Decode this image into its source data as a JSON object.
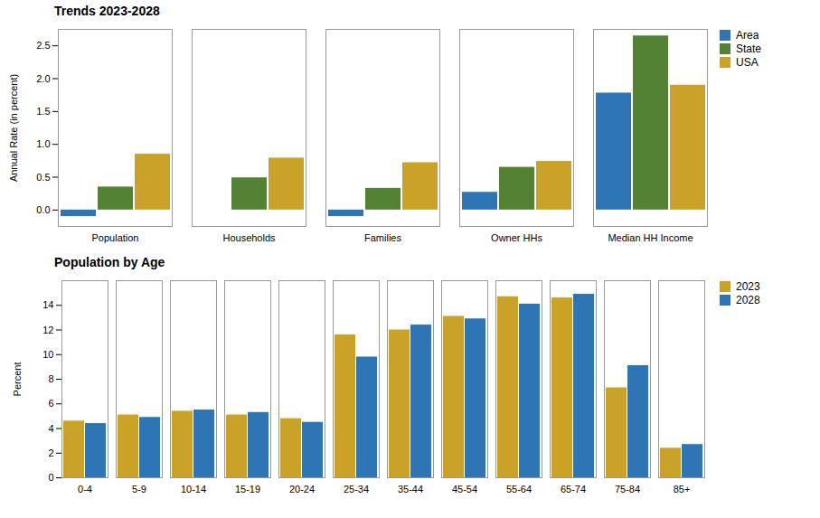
{
  "chart_data": [
    {
      "type": "bar",
      "title": "Trends 2023-2028",
      "categories": [
        "Population",
        "Households",
        "Families",
        "Owner HHs",
        "Median HH Income"
      ],
      "series": [
        {
          "name": "Area",
          "color": "#2E75B6",
          "values": [
            -0.1,
            0.0,
            -0.1,
            0.27,
            1.78
          ]
        },
        {
          "name": "State",
          "color": "#548235",
          "values": [
            0.35,
            0.49,
            0.33,
            0.65,
            2.65
          ]
        },
        {
          "name": "USA",
          "color": "#C9A227",
          "values": [
            0.85,
            0.79,
            0.72,
            0.74,
            1.9
          ]
        }
      ],
      "ylabel": "Annual Rate (in percent)",
      "ylim": [
        -0.25,
        2.75
      ],
      "yticks": [
        {
          "value": 0,
          "label": "0.0"
        },
        0.5,
        {
          "value": 1,
          "label": "1.0"
        },
        1.5,
        {
          "value": 2,
          "label": "2.0"
        },
        2.5
      ],
      "grid": false,
      "legend": "right"
    },
    {
      "type": "bar",
      "title": "Population by Age",
      "categories": [
        "0-4",
        "5-9",
        "10-14",
        "15-19",
        "20-24",
        "25-34",
        "35-44",
        "45-54",
        "55-64",
        "65-74",
        "75-84",
        "85+"
      ],
      "series": [
        {
          "name": "2023",
          "color": "#C9A227",
          "values": [
            4.6,
            5.1,
            5.4,
            5.1,
            4.8,
            11.6,
            12.0,
            13.1,
            14.7,
            14.6,
            7.3,
            2.4
          ]
        },
        {
          "name": "2028",
          "color": "#2E75B6",
          "values": [
            4.4,
            4.9,
            5.5,
            5.3,
            4.5,
            9.8,
            12.4,
            12.9,
            14.1,
            14.9,
            9.1,
            2.7
          ]
        }
      ],
      "ylabel": "Percent",
      "ylim": [
        0,
        16
      ],
      "yticks": [
        0,
        2,
        4,
        6,
        8,
        10,
        12,
        14
      ],
      "grid": false,
      "legend": "right"
    }
  ]
}
